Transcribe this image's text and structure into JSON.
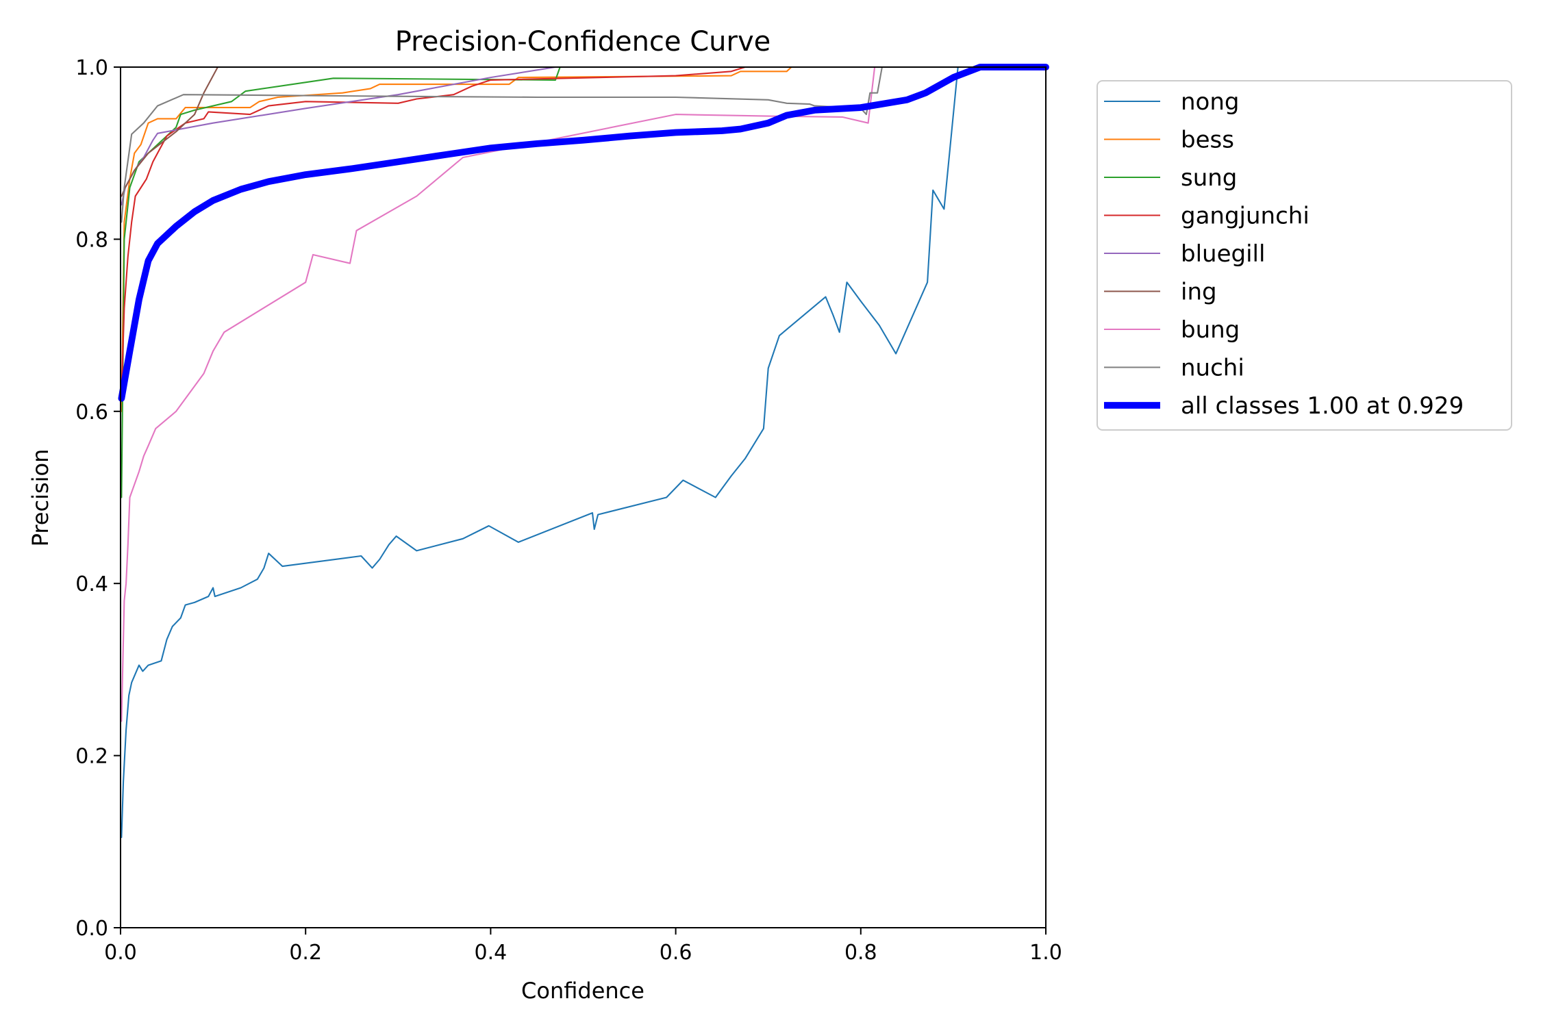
{
  "chart_data": {
    "type": "line",
    "title": "Precision-Confidence Curve",
    "xlabel": "Confidence",
    "ylabel": "Precision",
    "xlim": [
      0,
      1
    ],
    "ylim": [
      0,
      1
    ],
    "xticks": [
      "0.0",
      "0.2",
      "0.4",
      "0.6",
      "0.8",
      "1.0"
    ],
    "yticks": [
      "0.0",
      "0.2",
      "0.4",
      "0.6",
      "0.8",
      "1.0"
    ],
    "grid": false,
    "legend_position": "outside-top-right",
    "series": [
      {
        "name": "nong",
        "color": "#1f77b4",
        "width": 1.5,
        "points": [
          [
            0.001,
            0.105
          ],
          [
            0.003,
            0.17
          ],
          [
            0.006,
            0.23
          ],
          [
            0.009,
            0.27
          ],
          [
            0.012,
            0.285
          ],
          [
            0.016,
            0.295
          ],
          [
            0.02,
            0.305
          ],
          [
            0.024,
            0.298
          ],
          [
            0.03,
            0.305
          ],
          [
            0.044,
            0.31
          ],
          [
            0.05,
            0.335
          ],
          [
            0.056,
            0.35
          ],
          [
            0.065,
            0.36
          ],
          [
            0.07,
            0.375
          ],
          [
            0.08,
            0.378
          ],
          [
            0.095,
            0.385
          ],
          [
            0.1,
            0.395
          ],
          [
            0.102,
            0.385
          ],
          [
            0.13,
            0.395
          ],
          [
            0.148,
            0.405
          ],
          [
            0.155,
            0.418
          ],
          [
            0.16,
            0.435
          ],
          [
            0.175,
            0.42
          ],
          [
            0.26,
            0.432
          ],
          [
            0.272,
            0.418
          ],
          [
            0.28,
            0.428
          ],
          [
            0.29,
            0.445
          ],
          [
            0.298,
            0.455
          ],
          [
            0.32,
            0.438
          ],
          [
            0.37,
            0.452
          ],
          [
            0.398,
            0.467
          ],
          [
            0.43,
            0.448
          ],
          [
            0.51,
            0.482
          ],
          [
            0.512,
            0.463
          ],
          [
            0.516,
            0.48
          ],
          [
            0.59,
            0.5
          ],
          [
            0.608,
            0.52
          ],
          [
            0.643,
            0.5
          ],
          [
            0.66,
            0.525
          ],
          [
            0.675,
            0.545
          ],
          [
            0.695,
            0.58
          ],
          [
            0.7,
            0.65
          ],
          [
            0.712,
            0.688
          ],
          [
            0.762,
            0.733
          ],
          [
            0.77,
            0.712
          ],
          [
            0.777,
            0.692
          ],
          [
            0.785,
            0.75
          ],
          [
            0.8,
            0.728
          ],
          [
            0.82,
            0.7
          ],
          [
            0.838,
            0.667
          ],
          [
            0.872,
            0.75
          ],
          [
            0.878,
            0.857
          ],
          [
            0.89,
            0.835
          ],
          [
            0.905,
            1.0
          ],
          [
            1.0,
            1.0
          ]
        ]
      },
      {
        "name": "bess",
        "color": "#ff7f0e",
        "width": 1.5,
        "points": [
          [
            0.001,
            0.6
          ],
          [
            0.004,
            0.82
          ],
          [
            0.01,
            0.87
          ],
          [
            0.015,
            0.9
          ],
          [
            0.022,
            0.91
          ],
          [
            0.03,
            0.935
          ],
          [
            0.04,
            0.94
          ],
          [
            0.06,
            0.94
          ],
          [
            0.07,
            0.953
          ],
          [
            0.14,
            0.953
          ],
          [
            0.15,
            0.96
          ],
          [
            0.17,
            0.965
          ],
          [
            0.24,
            0.97
          ],
          [
            0.27,
            0.975
          ],
          [
            0.28,
            0.98
          ],
          [
            0.42,
            0.98
          ],
          [
            0.43,
            0.988
          ],
          [
            0.66,
            0.99
          ],
          [
            0.67,
            0.995
          ],
          [
            0.72,
            0.995
          ],
          [
            0.725,
            1.0
          ],
          [
            1.0,
            1.0
          ]
        ]
      },
      {
        "name": "sung",
        "color": "#2ca02c",
        "width": 1.5,
        "points": [
          [
            0.001,
            0.5
          ],
          [
            0.004,
            0.8
          ],
          [
            0.01,
            0.86
          ],
          [
            0.02,
            0.89
          ],
          [
            0.04,
            0.91
          ],
          [
            0.06,
            0.93
          ],
          [
            0.065,
            0.945
          ],
          [
            0.08,
            0.95
          ],
          [
            0.12,
            0.96
          ],
          [
            0.135,
            0.972
          ],
          [
            0.23,
            0.987
          ],
          [
            0.47,
            0.985
          ],
          [
            0.475,
            1.0
          ],
          [
            1.0,
            1.0
          ]
        ]
      },
      {
        "name": "gangjunchi",
        "color": "#d62728",
        "width": 1.5,
        "points": [
          [
            0.001,
            0.62
          ],
          [
            0.004,
            0.72
          ],
          [
            0.008,
            0.78
          ],
          [
            0.012,
            0.82
          ],
          [
            0.016,
            0.85
          ],
          [
            0.022,
            0.86
          ],
          [
            0.028,
            0.87
          ],
          [
            0.035,
            0.89
          ],
          [
            0.04,
            0.9
          ],
          [
            0.05,
            0.92
          ],
          [
            0.07,
            0.935
          ],
          [
            0.09,
            0.94
          ],
          [
            0.095,
            0.948
          ],
          [
            0.14,
            0.945
          ],
          [
            0.16,
            0.955
          ],
          [
            0.2,
            0.96
          ],
          [
            0.3,
            0.958
          ],
          [
            0.32,
            0.963
          ],
          [
            0.36,
            0.968
          ],
          [
            0.38,
            0.978
          ],
          [
            0.4,
            0.985
          ],
          [
            0.6,
            0.99
          ],
          [
            0.66,
            0.995
          ],
          [
            0.675,
            1.0
          ],
          [
            1.0,
            1.0
          ]
        ]
      },
      {
        "name": "bluegill",
        "color": "#9467bd",
        "width": 1.5,
        "points": [
          [
            0.001,
            0.84
          ],
          [
            0.005,
            0.86
          ],
          [
            0.015,
            0.88
          ],
          [
            0.025,
            0.895
          ],
          [
            0.035,
            0.915
          ],
          [
            0.04,
            0.923
          ],
          [
            0.1,
            0.935
          ],
          [
            0.2,
            0.952
          ],
          [
            0.3,
            0.968
          ],
          [
            0.4,
            0.988
          ],
          [
            0.47,
            1.0
          ],
          [
            1.0,
            1.0
          ]
        ]
      },
      {
        "name": "ing",
        "color": "#8c564b",
        "width": 1.5,
        "points": [
          [
            0.001,
            0.85
          ],
          [
            0.005,
            0.86
          ],
          [
            0.015,
            0.88
          ],
          [
            0.03,
            0.9
          ],
          [
            0.06,
            0.925
          ],
          [
            0.08,
            0.945
          ],
          [
            0.09,
            0.97
          ],
          [
            0.1,
            0.99
          ],
          [
            0.105,
            1.0
          ],
          [
            1.0,
            1.0
          ]
        ]
      },
      {
        "name": "bung",
        "color": "#e377c2",
        "width": 1.5,
        "points": [
          [
            0.001,
            0.24
          ],
          [
            0.004,
            0.38
          ],
          [
            0.006,
            0.4
          ],
          [
            0.008,
            0.445
          ],
          [
            0.01,
            0.5
          ],
          [
            0.02,
            0.53
          ],
          [
            0.025,
            0.548
          ],
          [
            0.03,
            0.56
          ],
          [
            0.038,
            0.58
          ],
          [
            0.06,
            0.6
          ],
          [
            0.09,
            0.644
          ],
          [
            0.1,
            0.67
          ],
          [
            0.112,
            0.692
          ],
          [
            0.2,
            0.75
          ],
          [
            0.208,
            0.782
          ],
          [
            0.248,
            0.772
          ],
          [
            0.255,
            0.81
          ],
          [
            0.32,
            0.85
          ],
          [
            0.37,
            0.895
          ],
          [
            0.6,
            0.945
          ],
          [
            0.7,
            0.943
          ],
          [
            0.78,
            0.942
          ],
          [
            0.808,
            0.935
          ],
          [
            0.815,
            1.0
          ],
          [
            1.0,
            1.0
          ]
        ]
      },
      {
        "name": "nuchi",
        "color": "#7f7f7f",
        "width": 1.5,
        "points": [
          [
            0.001,
            0.82
          ],
          [
            0.004,
            0.86
          ],
          [
            0.012,
            0.922
          ],
          [
            0.025,
            0.935
          ],
          [
            0.04,
            0.955
          ],
          [
            0.068,
            0.968
          ],
          [
            0.3,
            0.966
          ],
          [
            0.45,
            0.965
          ],
          [
            0.6,
            0.965
          ],
          [
            0.7,
            0.962
          ],
          [
            0.72,
            0.958
          ],
          [
            0.745,
            0.957
          ],
          [
            0.75,
            0.955
          ],
          [
            0.8,
            0.952
          ],
          [
            0.806,
            0.945
          ],
          [
            0.81,
            0.97
          ],
          [
            0.818,
            0.97
          ],
          [
            0.823,
            1.0
          ],
          [
            1.0,
            1.0
          ]
        ]
      },
      {
        "name": "all classes 1.00 at 0.929",
        "color": "#0000ff",
        "width": 7,
        "points": [
          [
            0.001,
            0.615
          ],
          [
            0.01,
            0.67
          ],
          [
            0.02,
            0.73
          ],
          [
            0.03,
            0.775
          ],
          [
            0.04,
            0.795
          ],
          [
            0.06,
            0.815
          ],
          [
            0.08,
            0.832
          ],
          [
            0.1,
            0.845
          ],
          [
            0.13,
            0.858
          ],
          [
            0.16,
            0.867
          ],
          [
            0.2,
            0.875
          ],
          [
            0.25,
            0.882
          ],
          [
            0.3,
            0.89
          ],
          [
            0.35,
            0.898
          ],
          [
            0.4,
            0.906
          ],
          [
            0.45,
            0.911
          ],
          [
            0.5,
            0.915
          ],
          [
            0.55,
            0.92
          ],
          [
            0.6,
            0.924
          ],
          [
            0.65,
            0.926
          ],
          [
            0.67,
            0.928
          ],
          [
            0.7,
            0.935
          ],
          [
            0.72,
            0.944
          ],
          [
            0.75,
            0.95
          ],
          [
            0.8,
            0.953
          ],
          [
            0.85,
            0.962
          ],
          [
            0.87,
            0.97
          ],
          [
            0.9,
            0.988
          ],
          [
            0.929,
            1.0
          ],
          [
            1.0,
            1.0
          ]
        ]
      }
    ]
  }
}
